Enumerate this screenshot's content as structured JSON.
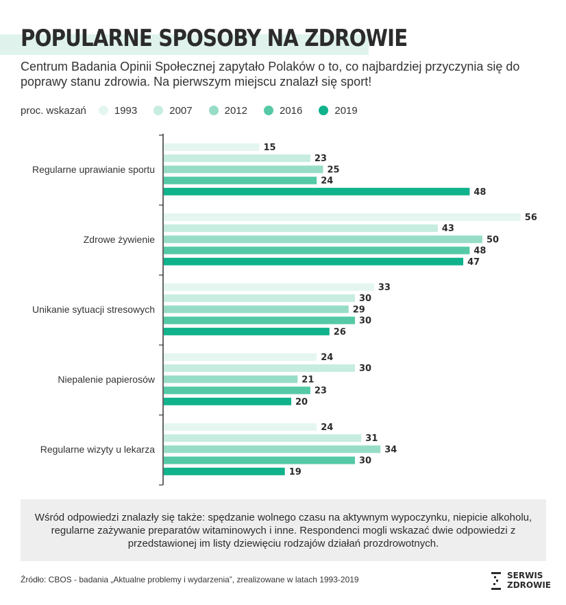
{
  "title": "POPULARNE SPOSOBY NA ZDROWIE",
  "subtitle": "Centrum Badania Opinii Społecznej zapytało Polaków o to, co najbardziej przyczynia się do poprawy stanu zdrowia. Na pierwszym miejscu znalazł się sport!",
  "legend": {
    "title": "proc. wskazań",
    "items": [
      {
        "label": "1993",
        "color": "#e5f6f1"
      },
      {
        "label": "2007",
        "color": "#c7ece0"
      },
      {
        "label": "2012",
        "color": "#97dcc6"
      },
      {
        "label": "2016",
        "color": "#55c9a6"
      },
      {
        "label": "2019",
        "color": "#0fb28b"
      }
    ]
  },
  "chart_data": {
    "type": "bar",
    "orientation": "horizontal",
    "categories": [
      "Regularne uprawianie sportu",
      "Zdrowe żywienie",
      "Unikanie sytuacji stresowych",
      "Niepalenie papierosów",
      "Regularne wizyty u lekarza"
    ],
    "series": [
      {
        "name": "1993",
        "color": "#e5f6f1",
        "values": [
          15,
          56,
          33,
          24,
          24
        ]
      },
      {
        "name": "2007",
        "color": "#c7ece0",
        "values": [
          23,
          43,
          30,
          30,
          31
        ]
      },
      {
        "name": "2012",
        "color": "#97dcc6",
        "values": [
          25,
          50,
          29,
          21,
          34
        ]
      },
      {
        "name": "2016",
        "color": "#55c9a6",
        "values": [
          24,
          48,
          30,
          23,
          30
        ]
      },
      {
        "name": "2019",
        "color": "#0fb28b",
        "values": [
          48,
          47,
          26,
          20,
          19
        ]
      }
    ],
    "xlim": [
      0,
      56
    ],
    "grid": false,
    "data_labels": true,
    "legend_position": "top-left"
  },
  "note": "Wśród odpowiedzi znalazły się także: spędzanie wolnego czasu na aktywnym wypoczynku, niepicie alkoholu, regularne zażywanie preparatów witaminowych i inne. Respondenci mogli wskazać dwie odpowiedzi z przedstawionej im listy dziewięciu rodzajów działań prozdrowotnych.",
  "source": "Źródło: CBOS - badania „Aktualne problemy i wydarzenia”, zrealizowane w latach 1993-2019",
  "logo": {
    "line1": "SERWIS",
    "line2": "ZDROWIE"
  }
}
